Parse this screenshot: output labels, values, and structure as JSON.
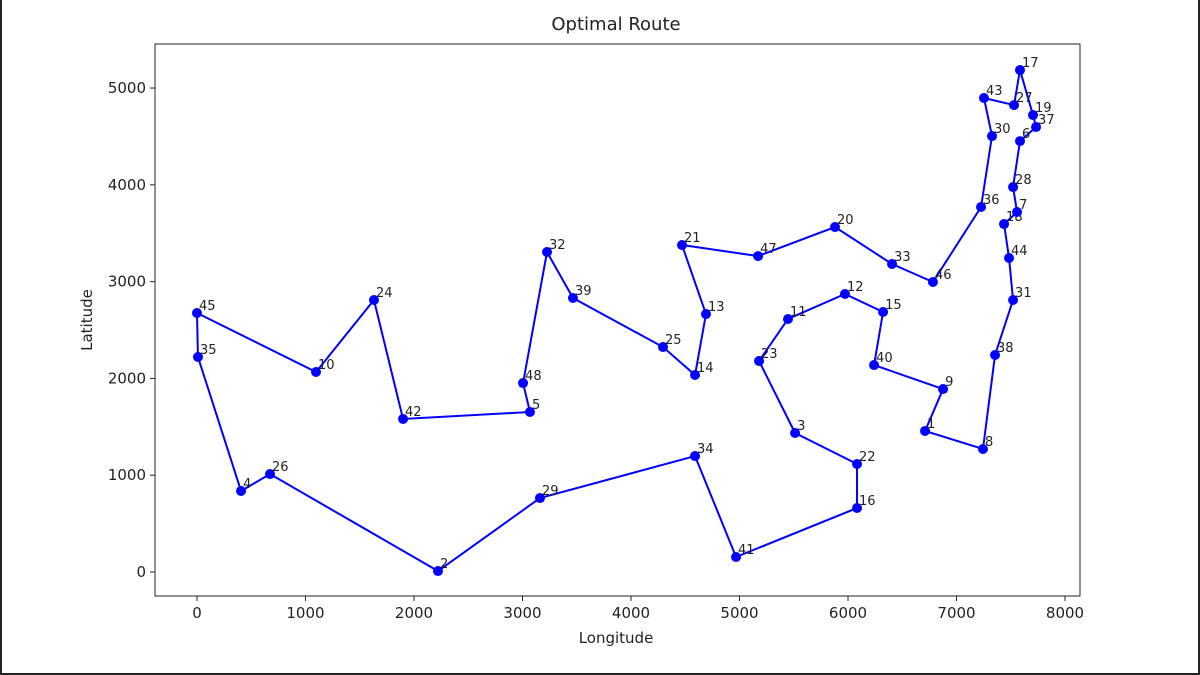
{
  "chart_data": {
    "type": "route",
    "title": "Optimal Route",
    "x_label": "Longitude",
    "y_label": "Latitude",
    "labels": [
      "45",
      "35",
      "4",
      "26",
      "2",
      "29",
      "34",
      "41",
      "16",
      "22",
      "3",
      "23",
      "11",
      "12",
      "15",
      "40",
      "9",
      "1",
      "8",
      "38",
      "31",
      "44",
      "18",
      "7",
      "28",
      "6",
      "37",
      "19",
      "17",
      "27",
      "43",
      "30",
      "36",
      "46",
      "33",
      "20",
      "47",
      "21",
      "13",
      "14",
      "25",
      "39",
      "32",
      "48",
      "5",
      "42",
      "24",
      "10"
    ],
    "x": [
      0,
      9,
      406,
      673,
      2221,
      3161,
      4590,
      4968,
      6083,
      6083,
      5512,
      5180,
      5447,
      5972,
      6323,
      6240,
      6876,
      6710,
      7244,
      7355,
      7521,
      7484,
      7438,
      7558,
      7521,
      7585,
      7733,
      7705,
      7585,
      7530,
      7253,
      7327,
      7226,
      6783,
      6406,
      5880,
      5171,
      4470,
      4691,
      4590,
      4295,
      3465,
      3226,
      3005,
      3069,
      1899,
      1631,
      1097
    ],
    "y": [
      2676,
      2221,
      837,
      1012,
      10,
      764,
      1198,
      155,
      661,
      1116,
      1436,
      2180,
      2614,
      2872,
      2686,
      2138,
      1890,
      1457,
      1271,
      2242,
      2810,
      3244,
      3595,
      3719,
      3977,
      4452,
      4597,
      4721,
      5186,
      4824,
      4897,
      4504,
      3771,
      2996,
      3182,
      3564,
      3264,
      3378,
      2665,
      2035,
      2324,
      2831,
      3306,
      1952,
      1653,
      1581,
      2810,
      2066
    ],
    "closed": true,
    "color": "#0000ff",
    "xlim": [
      -387,
      8138
    ],
    "ylim": [
      -248,
      5455
    ],
    "xticks": [
      0,
      1000,
      2000,
      3000,
      4000,
      5000,
      6000,
      7000,
      8000
    ],
    "yticks": [
      0,
      1000,
      2000,
      3000,
      4000,
      5000
    ]
  }
}
